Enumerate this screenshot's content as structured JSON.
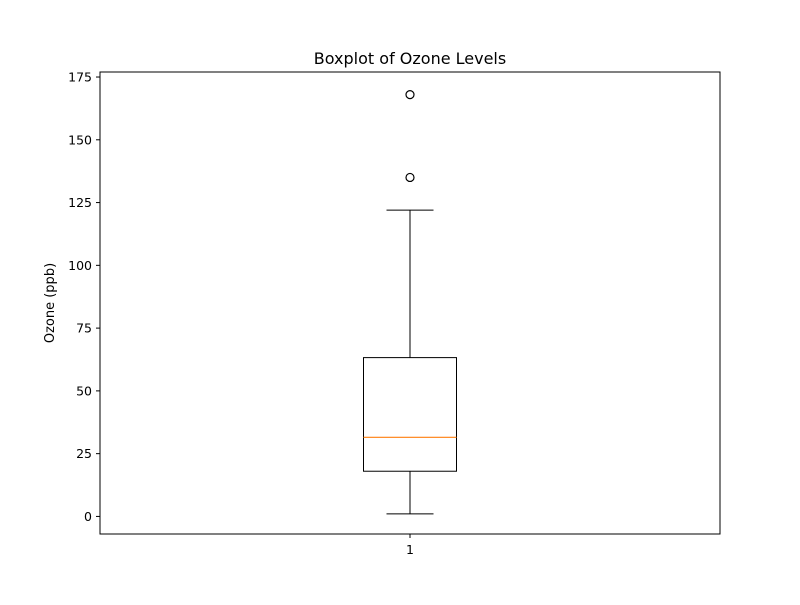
{
  "chart_data": {
    "type": "boxplot",
    "title": "Boxplot of Ozone Levels",
    "xlabel": "",
    "ylabel": "Ozone (ppb)",
    "ylim": [
      -7,
      177
    ],
    "y_ticks": [
      0,
      25,
      50,
      75,
      100,
      125,
      150,
      175
    ],
    "categories": [
      "1"
    ],
    "boxes": [
      {
        "category": "1",
        "whisker_low": 1,
        "q1": 18,
        "median": 31.5,
        "q3": 63.25,
        "whisker_high": 122,
        "outliers": [
          135,
          168
        ]
      }
    ],
    "grid": false,
    "colors": {
      "box": "#000000",
      "median": "#ff7f0e",
      "outlier": "#000000"
    }
  }
}
